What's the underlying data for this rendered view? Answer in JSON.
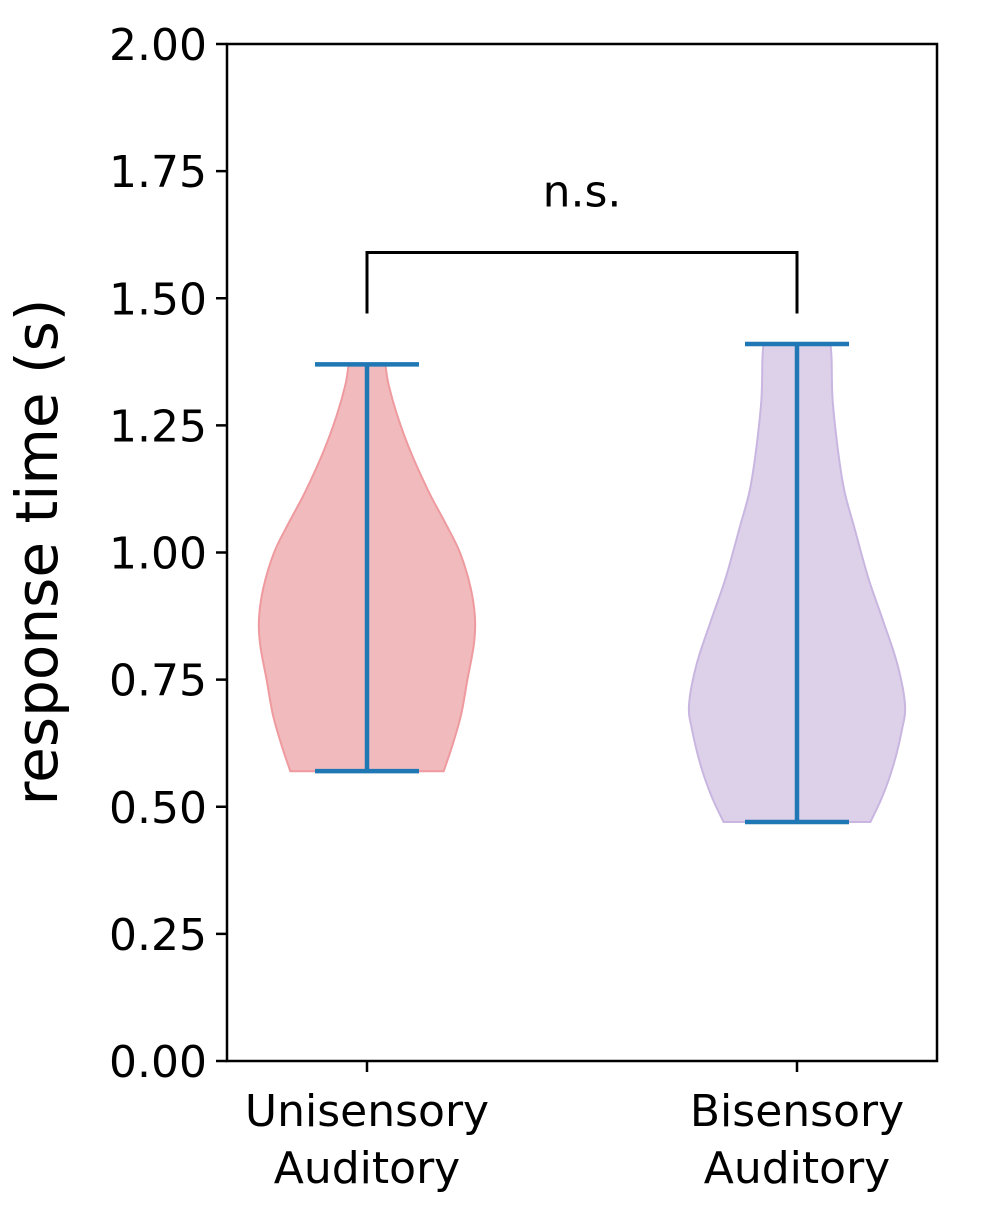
{
  "chart_data": {
    "type": "violin",
    "title": "",
    "xlabel": "",
    "ylabel": "response time (s)",
    "ylim": [
      0,
      2.0
    ],
    "yticks": [
      "0.00",
      "0.25",
      "0.50",
      "0.75",
      "1.00",
      "1.25",
      "1.50",
      "1.75",
      "2.00"
    ],
    "grid": false,
    "categories": [
      {
        "line1": "Unisensory",
        "line2": "Auditory"
      },
      {
        "line1": "Bisensory",
        "line2": "Auditory"
      }
    ],
    "series": [
      {
        "min": 0.57,
        "max": 1.37,
        "fill_color": "#f1bbbe",
        "edge_color": "#ee9a9f",
        "density_profile": [
          [
            0.57,
            0.71
          ],
          [
            0.62,
            0.79
          ],
          [
            0.68,
            0.87
          ],
          [
            0.75,
            0.93
          ],
          [
            0.82,
            0.99
          ],
          [
            0.87,
            1.0
          ],
          [
            0.93,
            0.96
          ],
          [
            1.0,
            0.86
          ],
          [
            1.06,
            0.72
          ],
          [
            1.12,
            0.57
          ],
          [
            1.2,
            0.4
          ],
          [
            1.27,
            0.28
          ],
          [
            1.33,
            0.2
          ],
          [
            1.37,
            0.17
          ]
        ]
      },
      {
        "min": 0.47,
        "max": 1.41,
        "fill_color": "#ddd1ea",
        "edge_color": "#c9b6e0",
        "density_profile": [
          [
            0.47,
            0.68
          ],
          [
            0.52,
            0.79
          ],
          [
            0.58,
            0.89
          ],
          [
            0.65,
            0.97
          ],
          [
            0.7,
            1.0
          ],
          [
            0.78,
            0.93
          ],
          [
            0.87,
            0.79
          ],
          [
            0.95,
            0.66
          ],
          [
            1.05,
            0.53
          ],
          [
            1.12,
            0.44
          ],
          [
            1.2,
            0.38
          ],
          [
            1.3,
            0.33
          ],
          [
            1.38,
            0.32
          ],
          [
            1.41,
            0.31
          ]
        ]
      }
    ],
    "whisker_color": "#1f77b4",
    "annotation": {
      "text": "n.s.",
      "bracket_y": 1.59,
      "bracket_drop": 1.47
    }
  }
}
